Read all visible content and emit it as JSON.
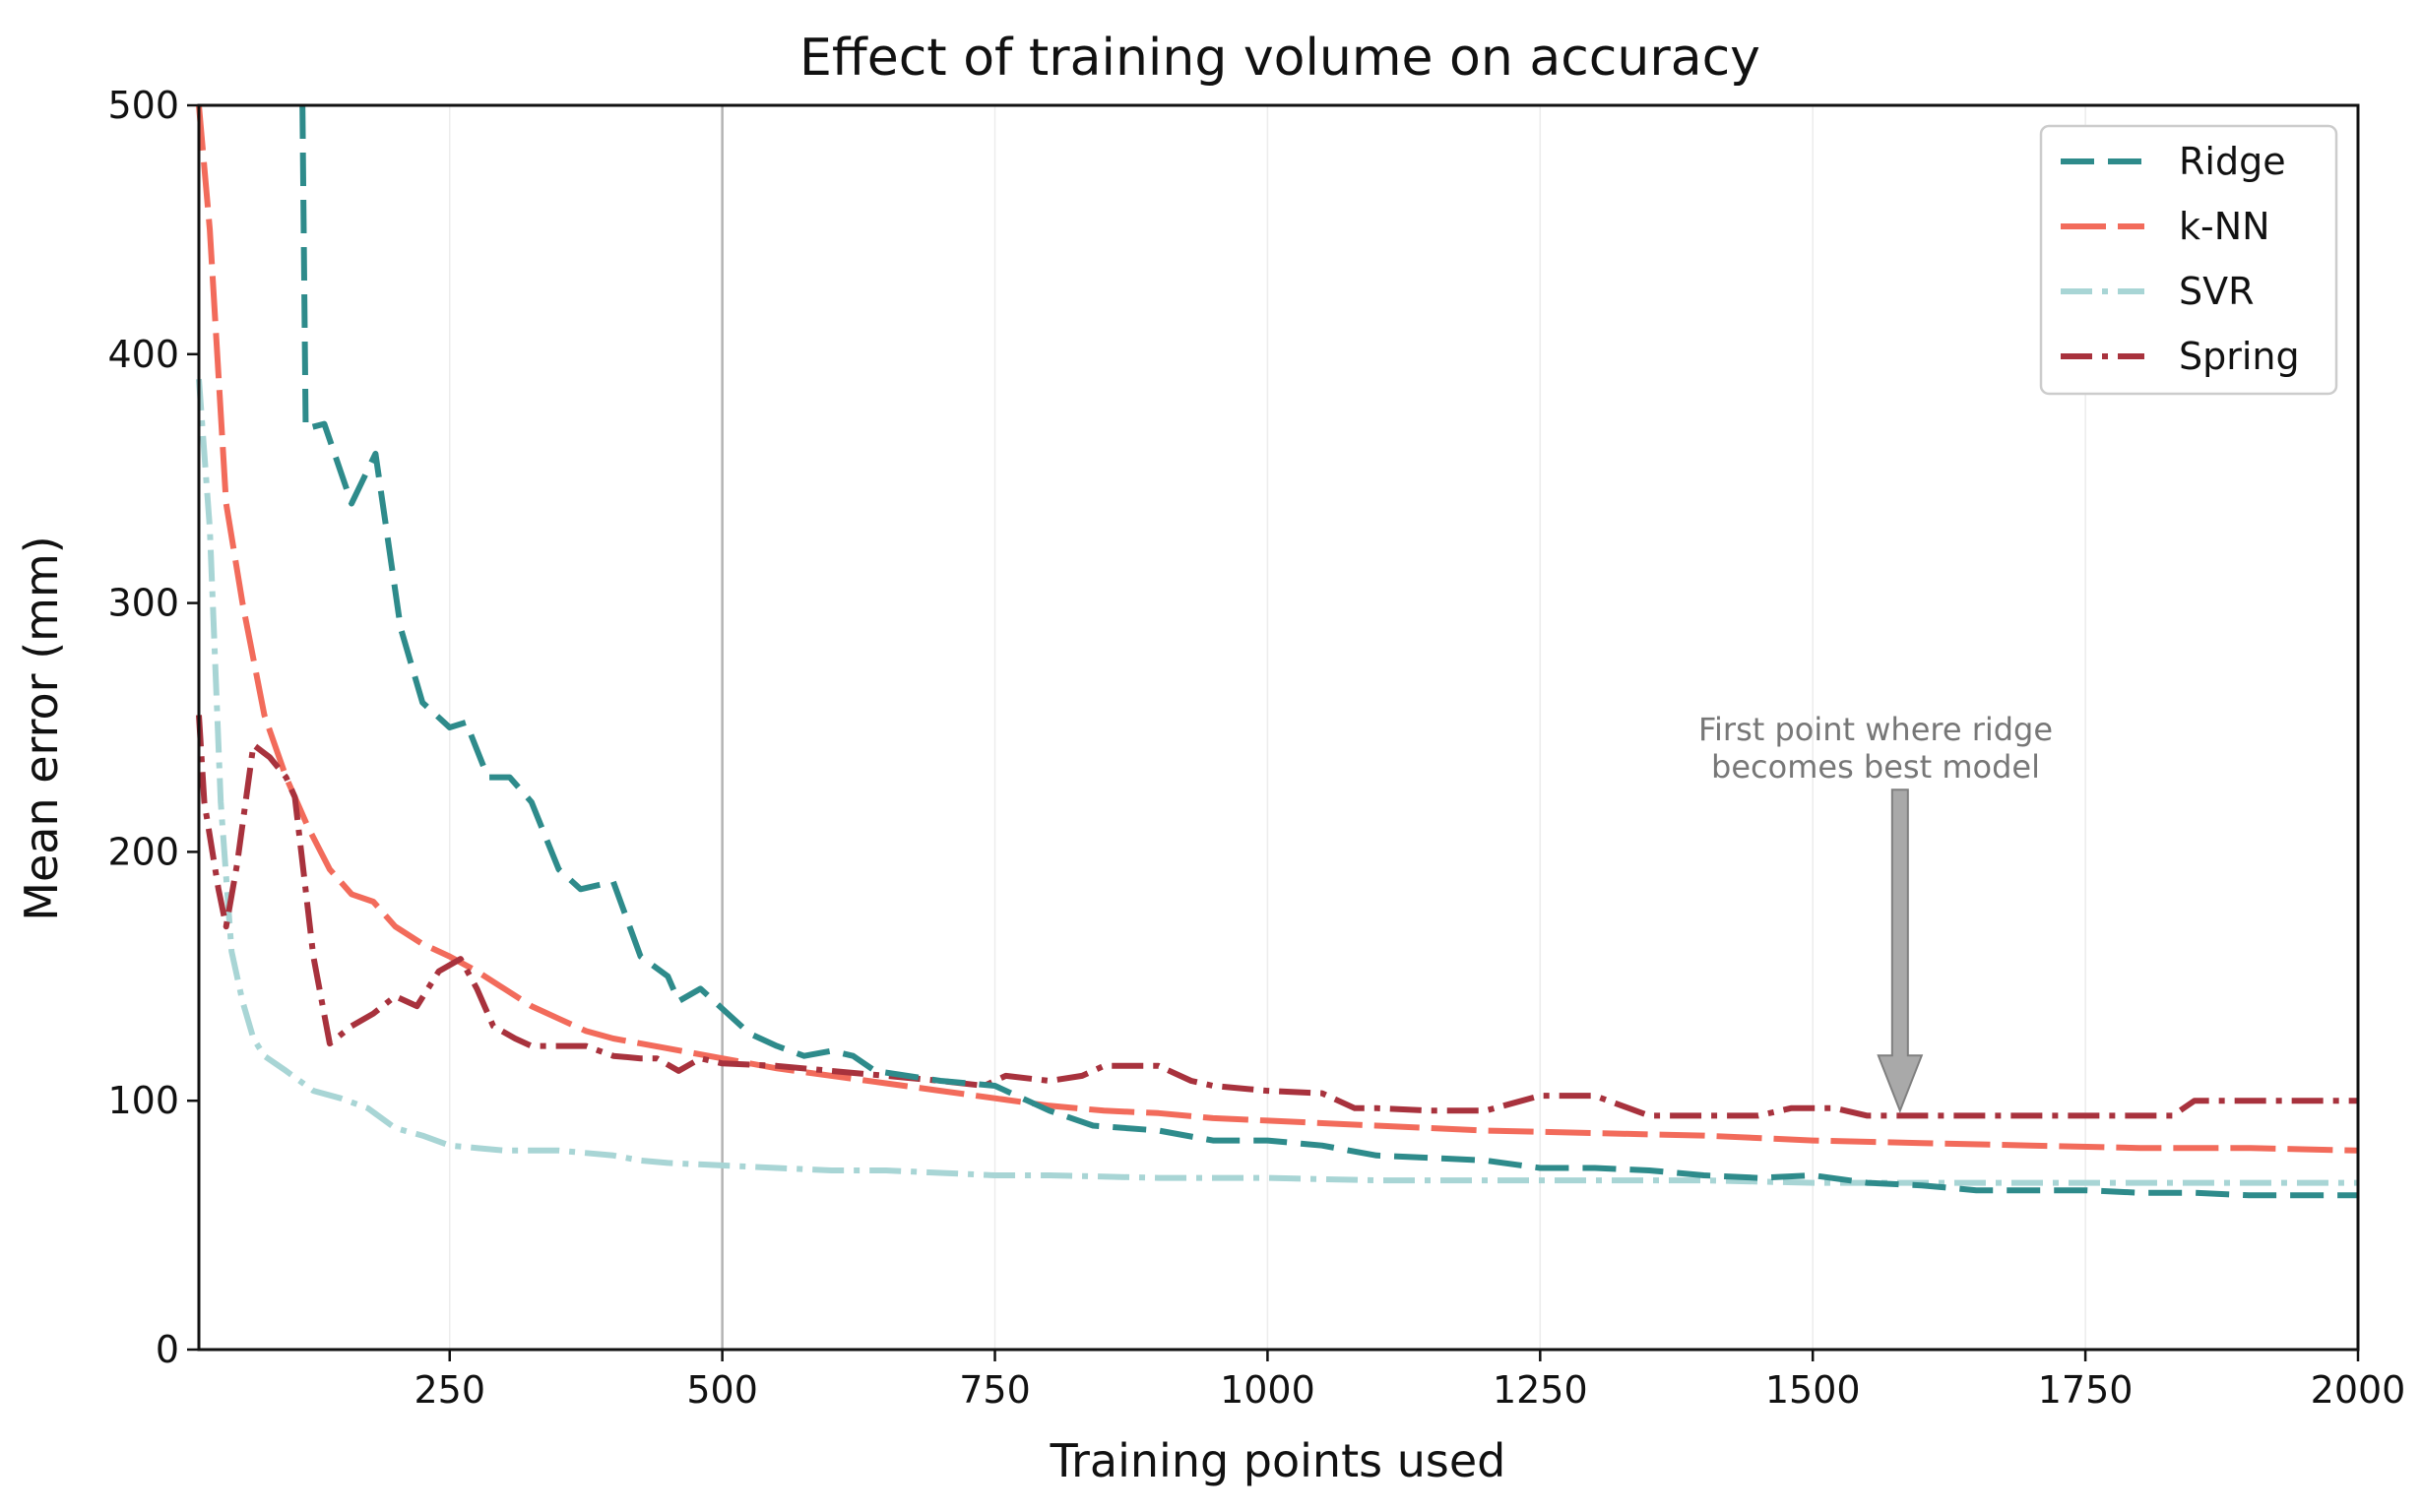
{
  "chart_data": {
    "type": "line",
    "title": "Effect of training volume on accuracy",
    "xlabel": "Training points used",
    "ylabel": "Mean error (mm)",
    "xlim": [
      20,
      2000
    ],
    "ylim": [
      0,
      500
    ],
    "xticks": [
      250,
      500,
      750,
      1000,
      1250,
      1500,
      1750,
      2000
    ],
    "yticks": [
      0,
      100,
      200,
      300,
      400,
      500
    ],
    "grid": "vertical",
    "highlight_x": 500,
    "legend_position": "top-right",
    "series": [
      {
        "name": "Ridge",
        "color": "#2e8b8b",
        "dash": "dashed",
        "points": [
          [
            115,
            500
          ],
          [
            118,
            370
          ],
          [
            135,
            372
          ],
          [
            160,
            340
          ],
          [
            182,
            360
          ],
          [
            205,
            290
          ],
          [
            225,
            260
          ],
          [
            250,
            250
          ],
          [
            265,
            252
          ],
          [
            285,
            230
          ],
          [
            305,
            230
          ],
          [
            325,
            220
          ],
          [
            350,
            193
          ],
          [
            370,
            185
          ],
          [
            400,
            188
          ],
          [
            425,
            158
          ],
          [
            450,
            150
          ],
          [
            460,
            140
          ],
          [
            480,
            145
          ],
          [
            500,
            137
          ],
          [
            525,
            127
          ],
          [
            550,
            122
          ],
          [
            575,
            118
          ],
          [
            600,
            120
          ],
          [
            620,
            118
          ],
          [
            640,
            112
          ],
          [
            700,
            108
          ],
          [
            750,
            106
          ],
          [
            780,
            100
          ],
          [
            800,
            96
          ],
          [
            840,
            90
          ],
          [
            900,
            88
          ],
          [
            950,
            84
          ],
          [
            1000,
            84
          ],
          [
            1050,
            82
          ],
          [
            1100,
            78
          ],
          [
            1150,
            77
          ],
          [
            1200,
            76
          ],
          [
            1250,
            73
          ],
          [
            1300,
            73
          ],
          [
            1350,
            72
          ],
          [
            1400,
            70
          ],
          [
            1450,
            69
          ],
          [
            1500,
            70
          ],
          [
            1550,
            67
          ],
          [
            1600,
            66
          ],
          [
            1650,
            64
          ],
          [
            1700,
            64
          ],
          [
            1750,
            64
          ],
          [
            1800,
            63
          ],
          [
            1850,
            63
          ],
          [
            1900,
            62
          ],
          [
            2000,
            62
          ]
        ]
      },
      {
        "name": "k-NN",
        "color": "#f26b5b",
        "dash": "long-dash",
        "points": [
          [
            20,
            500
          ],
          [
            30,
            450
          ],
          [
            45,
            340
          ],
          [
            60,
            300
          ],
          [
            80,
            255
          ],
          [
            100,
            230
          ],
          [
            120,
            210
          ],
          [
            140,
            193
          ],
          [
            160,
            183
          ],
          [
            180,
            180
          ],
          [
            200,
            170
          ],
          [
            225,
            163
          ],
          [
            250,
            158
          ],
          [
            275,
            152
          ],
          [
            300,
            145
          ],
          [
            325,
            138
          ],
          [
            350,
            133
          ],
          [
            375,
            128
          ],
          [
            400,
            125
          ],
          [
            450,
            121
          ],
          [
            500,
            117
          ],
          [
            550,
            113
          ],
          [
            600,
            110
          ],
          [
            650,
            107
          ],
          [
            700,
            104
          ],
          [
            750,
            101
          ],
          [
            800,
            98
          ],
          [
            850,
            96
          ],
          [
            900,
            95
          ],
          [
            950,
            93
          ],
          [
            1000,
            92
          ],
          [
            1100,
            90
          ],
          [
            1200,
            88
          ],
          [
            1300,
            87
          ],
          [
            1400,
            86
          ],
          [
            1500,
            84
          ],
          [
            1600,
            83
          ],
          [
            1700,
            82
          ],
          [
            1800,
            81
          ],
          [
            1900,
            81
          ],
          [
            2000,
            80
          ]
        ]
      },
      {
        "name": "SVR",
        "color": "#a8d5d5",
        "dash": "dash-dot",
        "points": [
          [
            20,
            390
          ],
          [
            30,
            330
          ],
          [
            40,
            220
          ],
          [
            50,
            160
          ],
          [
            60,
            140
          ],
          [
            70,
            125
          ],
          [
            80,
            118
          ],
          [
            100,
            112
          ],
          [
            125,
            104
          ],
          [
            150,
            101
          ],
          [
            175,
            97
          ],
          [
            200,
            89
          ],
          [
            225,
            86
          ],
          [
            250,
            82
          ],
          [
            275,
            81
          ],
          [
            300,
            80
          ],
          [
            350,
            80
          ],
          [
            400,
            78
          ],
          [
            425,
            76
          ],
          [
            450,
            75
          ],
          [
            500,
            74
          ],
          [
            550,
            73
          ],
          [
            600,
            72
          ],
          [
            650,
            72
          ],
          [
            700,
            71
          ],
          [
            750,
            70
          ],
          [
            800,
            70
          ],
          [
            900,
            69
          ],
          [
            1000,
            69
          ],
          [
            1100,
            68
          ],
          [
            1200,
            68
          ],
          [
            1300,
            68
          ],
          [
            1400,
            68
          ],
          [
            1500,
            67
          ],
          [
            1600,
            67
          ],
          [
            1700,
            67
          ],
          [
            1800,
            67
          ],
          [
            1900,
            67
          ],
          [
            2000,
            67
          ]
        ]
      },
      {
        "name": "Spring",
        "color": "#a8323d",
        "dash": "dash-dot",
        "points": [
          [
            20,
            255
          ],
          [
            25,
            220
          ],
          [
            38,
            185
          ],
          [
            45,
            170
          ],
          [
            55,
            195
          ],
          [
            70,
            243
          ],
          [
            85,
            238
          ],
          [
            100,
            230
          ],
          [
            108,
            222
          ],
          [
            125,
            158
          ],
          [
            140,
            123
          ],
          [
            160,
            130
          ],
          [
            180,
            135
          ],
          [
            200,
            142
          ],
          [
            220,
            138
          ],
          [
            240,
            152
          ],
          [
            260,
            157
          ],
          [
            275,
            145
          ],
          [
            290,
            130
          ],
          [
            310,
            125
          ],
          [
            325,
            122
          ],
          [
            350,
            122
          ],
          [
            375,
            122
          ],
          [
            400,
            118
          ],
          [
            425,
            117
          ],
          [
            440,
            117
          ],
          [
            460,
            112
          ],
          [
            480,
            117
          ],
          [
            500,
            115
          ],
          [
            550,
            114
          ],
          [
            600,
            112
          ],
          [
            650,
            110
          ],
          [
            700,
            108
          ],
          [
            740,
            106
          ],
          [
            760,
            110
          ],
          [
            800,
            108
          ],
          [
            830,
            110
          ],
          [
            850,
            114
          ],
          [
            900,
            114
          ],
          [
            930,
            108
          ],
          [
            950,
            106
          ],
          [
            1000,
            104
          ],
          [
            1050,
            103
          ],
          [
            1080,
            97
          ],
          [
            1100,
            97
          ],
          [
            1150,
            96
          ],
          [
            1200,
            96
          ],
          [
            1250,
            102
          ],
          [
            1300,
            102
          ],
          [
            1350,
            94
          ],
          [
            1400,
            94
          ],
          [
            1450,
            94
          ],
          [
            1480,
            97
          ],
          [
            1520,
            97
          ],
          [
            1550,
            94
          ],
          [
            1600,
            94
          ],
          [
            1700,
            94
          ],
          [
            1750,
            94
          ],
          [
            1800,
            94
          ],
          [
            1830,
            94
          ],
          [
            1850,
            100
          ],
          [
            1900,
            100
          ],
          [
            1950,
            100
          ],
          [
            2000,
            100
          ]
        ]
      }
    ],
    "annotation": {
      "text_lines": [
        "First point where ridge",
        "becomes best model"
      ],
      "arrow_x": 1580,
      "arrow_from_y": 225,
      "arrow_to_y": 96,
      "color": "#777777"
    }
  }
}
